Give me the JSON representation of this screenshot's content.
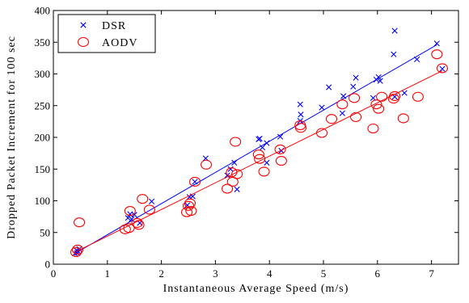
{
  "chart_data": {
    "type": "scatter",
    "xlabel": "Instantaneous Average Speed (m/s)",
    "ylabel": "Dropped Packet Increment for 100 sec",
    "xlim": [
      0,
      7.5
    ],
    "ylim": [
      0,
      400
    ],
    "xticks": [
      "0",
      "1",
      "2",
      "3",
      "4",
      "5",
      "6",
      "7"
    ],
    "yticks": [
      "0",
      "50",
      "100",
      "150",
      "200",
      "250",
      "300",
      "350",
      "400"
    ],
    "grid": false,
    "legend_position": "top-left",
    "series": [
      {
        "name": "DSR",
        "marker": "x",
        "color": "#0000ff",
        "points": [
          [
            0.4,
            17
          ],
          [
            0.43,
            22
          ],
          [
            0.46,
            20
          ],
          [
            0.44,
            18
          ],
          [
            0.48,
            24
          ],
          [
            1.38,
            73
          ],
          [
            1.42,
            79
          ],
          [
            1.45,
            71
          ],
          [
            1.5,
            78
          ],
          [
            1.6,
            65
          ],
          [
            1.82,
            99
          ],
          [
            2.48,
            93
          ],
          [
            2.52,
            106
          ],
          [
            2.58,
            107
          ],
          [
            2.62,
            130
          ],
          [
            2.82,
            167
          ],
          [
            3.22,
            140
          ],
          [
            3.28,
            150
          ],
          [
            3.35,
            160
          ],
          [
            3.4,
            118
          ],
          [
            3.8,
            197
          ],
          [
            3.82,
            198
          ],
          [
            3.87,
            184
          ],
          [
            3.95,
            191
          ],
          [
            3.95,
            160
          ],
          [
            4.2,
            201
          ],
          [
            4.22,
            179
          ],
          [
            4.57,
            252
          ],
          [
            4.58,
            236
          ],
          [
            4.57,
            226
          ],
          [
            4.97,
            247
          ],
          [
            5.1,
            279
          ],
          [
            5.35,
            238
          ],
          [
            5.37,
            265
          ],
          [
            5.55,
            280
          ],
          [
            5.6,
            294
          ],
          [
            5.92,
            262
          ],
          [
            5.98,
            291
          ],
          [
            6.02,
            295
          ],
          [
            6.05,
            289
          ],
          [
            6.3,
            331
          ],
          [
            6.32,
            368
          ],
          [
            6.32,
            264
          ],
          [
            6.5,
            270
          ],
          [
            6.73,
            323
          ],
          [
            7.1,
            348
          ],
          [
            7.2,
            308
          ]
        ],
        "fit_line": [
          [
            0.4,
            17
          ],
          [
            7.1,
            346
          ]
        ]
      },
      {
        "name": "AODV",
        "marker": "o",
        "color": "#ff0000",
        "points": [
          [
            0.42,
            19
          ],
          [
            0.45,
            23
          ],
          [
            0.48,
            66
          ],
          [
            1.33,
            55
          ],
          [
            1.4,
            57
          ],
          [
            1.42,
            84
          ],
          [
            1.55,
            65
          ],
          [
            1.58,
            62
          ],
          [
            1.65,
            103
          ],
          [
            1.78,
            86
          ],
          [
            2.47,
            82
          ],
          [
            2.5,
            92
          ],
          [
            2.53,
            96
          ],
          [
            2.55,
            84
          ],
          [
            2.62,
            130
          ],
          [
            2.83,
            157
          ],
          [
            3.22,
            119
          ],
          [
            3.3,
            145
          ],
          [
            3.32,
            130
          ],
          [
            3.37,
            193
          ],
          [
            3.4,
            142
          ],
          [
            3.8,
            173
          ],
          [
            3.82,
            166
          ],
          [
            3.9,
            146
          ],
          [
            4.2,
            181
          ],
          [
            4.22,
            163
          ],
          [
            4.57,
            219
          ],
          [
            4.58,
            215
          ],
          [
            4.97,
            207
          ],
          [
            5.15,
            229
          ],
          [
            5.35,
            252
          ],
          [
            5.57,
            262
          ],
          [
            5.6,
            232
          ],
          [
            5.92,
            214
          ],
          [
            5.98,
            252
          ],
          [
            6.02,
            245
          ],
          [
            6.08,
            264
          ],
          [
            6.3,
            261
          ],
          [
            6.32,
            265
          ],
          [
            6.48,
            230
          ],
          [
            6.75,
            264
          ],
          [
            7.1,
            331
          ],
          [
            7.2,
            309
          ]
        ],
        "fit_line": [
          [
            0.4,
            19
          ],
          [
            7.2,
            305
          ]
        ]
      }
    ]
  }
}
